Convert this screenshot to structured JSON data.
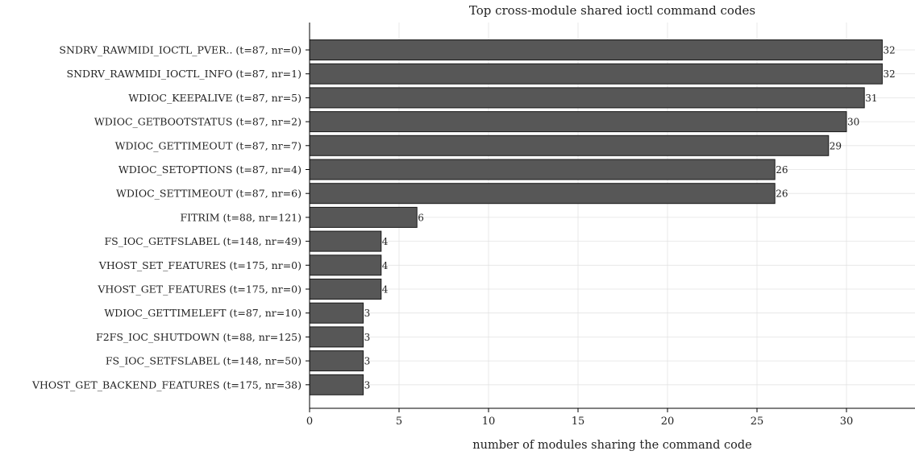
{
  "chart_data": {
    "type": "bar",
    "orientation": "horizontal",
    "title": "Top cross-module shared ioctl command codes",
    "xlabel": "number of modules sharing the command code",
    "ylabel": "",
    "xlim": [
      0,
      33.8
    ],
    "xticks": [
      0,
      5,
      10,
      15,
      20,
      25,
      30
    ],
    "grid": true,
    "bar_color": "#575757",
    "categories": [
      "SNDRV_RAWMIDI_IOCTL_PVER..  (t=87, nr=0)",
      "SNDRV_RAWMIDI_IOCTL_INFO  (t=87, nr=1)",
      "WDIOC_KEEPALIVE  (t=87, nr=5)",
      "WDIOC_GETBOOTSTATUS  (t=87, nr=2)",
      "WDIOC_GETTIMEOUT  (t=87, nr=7)",
      "WDIOC_SETOPTIONS  (t=87, nr=4)",
      "WDIOC_SETTIMEOUT  (t=87, nr=6)",
      "FITRIM  (t=88, nr=121)",
      "FS_IOC_GETFSLABEL  (t=148, nr=49)",
      "VHOST_SET_FEATURES  (t=175, nr=0)",
      "VHOST_GET_FEATURES  (t=175, nr=0)",
      "WDIOC_GETTIMELEFT  (t=87, nr=10)",
      "F2FS_IOC_SHUTDOWN  (t=88, nr=125)",
      "FS_IOC_SETFSLABEL  (t=148, nr=50)",
      "VHOST_GET_BACKEND_FEATURES  (t=175, nr=38)"
    ],
    "values": [
      32,
      32,
      31,
      30,
      29,
      26,
      26,
      6,
      4,
      4,
      4,
      3,
      3,
      3,
      3
    ]
  }
}
